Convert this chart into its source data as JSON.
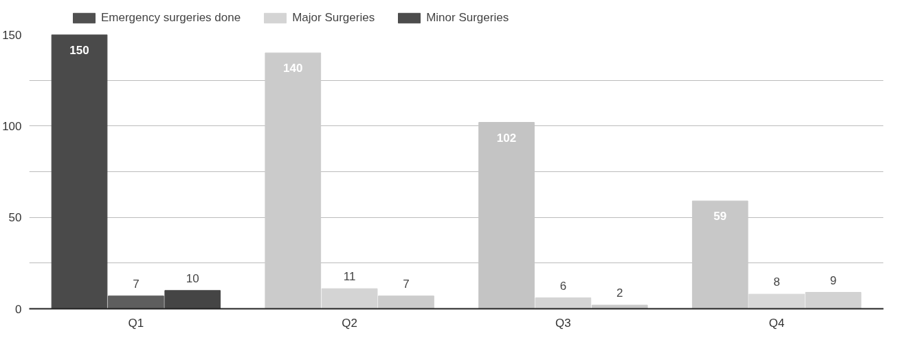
{
  "chart_data": {
    "type": "bar",
    "categories": [
      "Q1",
      "Q2",
      "Q3",
      "Q4"
    ],
    "series": [
      {
        "name": "Emergency surgeries done",
        "color": "#505050",
        "colors": [
          "#4a4a4a",
          "#cbcbcb",
          "#c4c4c4",
          "#c8c8c8"
        ],
        "values": [
          150,
          140,
          102,
          59
        ]
      },
      {
        "name": "Major Surgeries",
        "color": "#d4d4d4",
        "colors": [
          "#5e5e5e",
          "#d4d4d4",
          "#d4d4d4",
          "#d8d8d8"
        ],
        "values": [
          7,
          11,
          6,
          8
        ]
      },
      {
        "name": "Minor Surgeries",
        "color": "#4c4c4c",
        "colors": [
          "#454545",
          "#cccccc",
          "#c8c8c8",
          "#d2d2d2"
        ],
        "values": [
          10,
          7,
          2,
          9
        ]
      }
    ],
    "ylim": [
      0,
      150
    ],
    "yticks": [
      0,
      {
        "value": 25,
        "label": null
      },
      50,
      {
        "value": 75,
        "label": null
      },
      100,
      {
        "value": 125,
        "label": null
      },
      150
    ],
    "grid": "y",
    "legend": "top",
    "data_labels": true
  }
}
